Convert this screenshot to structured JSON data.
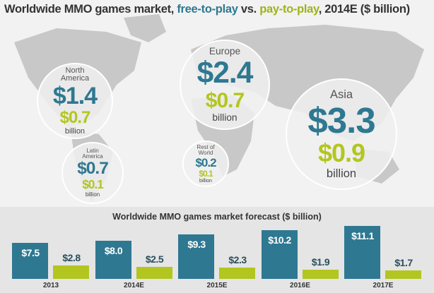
{
  "chart_data": [
    {
      "type": "bubble-map",
      "title_parts": [
        "Worldwide MMO games market, ",
        " vs. ",
        ", 2014E ($ billion)"
      ],
      "categories": [
        "North America",
        "Europe",
        "Asia",
        "Latin America",
        "Rest of World"
      ],
      "series": [
        {
          "name": "free-to-play",
          "color": "#2e7891",
          "values": [
            1.4,
            2.4,
            3.3,
            0.7,
            0.2
          ],
          "value_labels": [
            "$1.4",
            "$2.4",
            "$3.3",
            "$0.7",
            "$0.2"
          ]
        },
        {
          "name": "pay-to-play",
          "color": "#b3c61f",
          "values": [
            0.7,
            0.7,
            0.9,
            0.1,
            0.1
          ],
          "value_labels": [
            "$0.7",
            "$0.7",
            "$0.9",
            "$0.1",
            "$0.1"
          ]
        }
      ],
      "unit": "billion"
    },
    {
      "type": "bar",
      "title": "Worldwide MMO games market forecast ($ billion)",
      "categories": [
        "2013",
        "2014E",
        "2015E",
        "2016E",
        "2017E"
      ],
      "series": [
        {
          "name": "free-to-play",
          "color": "#2e7891",
          "values": [
            7.5,
            8.0,
            9.3,
            10.2,
            11.1
          ],
          "value_labels": [
            "$7.5",
            "$8.0",
            "$9.3",
            "$10.2",
            "$11.1"
          ]
        },
        {
          "name": "pay-to-play",
          "color": "#b3c61f",
          "values": [
            2.8,
            2.5,
            2.3,
            1.9,
            1.7
          ],
          "value_labels": [
            "$2.8",
            "$2.5",
            "$2.3",
            "$1.9",
            "$1.7"
          ]
        }
      ]
    }
  ]
}
